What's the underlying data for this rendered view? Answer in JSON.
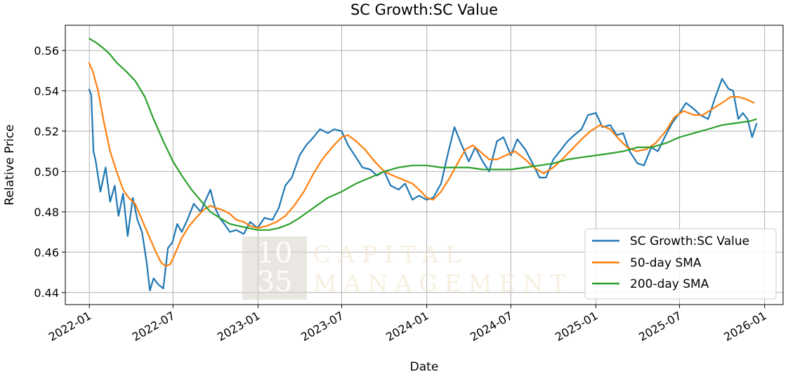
{
  "chart_data": {
    "type": "line",
    "title": "SC Growth:SC Value",
    "xlabel": "Date",
    "ylabel": "Relative Price",
    "xlim": [
      "2021-11-10",
      "2026-02-10"
    ],
    "ylim": [
      0.434,
      0.5725
    ],
    "x_ticks": [
      "2022-01",
      "2022-07",
      "2023-01",
      "2023-07",
      "2024-01",
      "2024-07",
      "2025-01",
      "2025-07",
      "2026-01"
    ],
    "y_ticks": [
      0.44,
      0.46,
      0.48,
      0.5,
      0.52,
      0.54,
      0.56
    ],
    "y_tick_labels": [
      "0.44",
      "0.46",
      "0.48",
      "0.50",
      "0.52",
      "0.54",
      "0.56"
    ],
    "grid": true,
    "legend_position": "lower-right",
    "series": [
      {
        "name": "SC Growth:SC Value",
        "color": "#1f77b4",
        "x": [
          "2021-12-31",
          "2022-01-05",
          "2022-01-10",
          "2022-01-15",
          "2022-01-25",
          "2022-02-05",
          "2022-02-15",
          "2022-02-25",
          "2022-03-05",
          "2022-03-15",
          "2022-03-25",
          "2022-04-05",
          "2022-04-15",
          "2022-04-25",
          "2022-05-05",
          "2022-05-12",
          "2022-05-20",
          "2022-05-30",
          "2022-06-10",
          "2022-06-20",
          "2022-06-30",
          "2022-07-10",
          "2022-07-20",
          "2022-08-01",
          "2022-08-15",
          "2022-08-30",
          "2022-09-10",
          "2022-09-20",
          "2022-09-30",
          "2022-10-10",
          "2022-10-20",
          "2022-11-01",
          "2022-11-15",
          "2022-12-01",
          "2022-12-15",
          "2022-12-31",
          "2023-01-15",
          "2023-02-01",
          "2023-02-15",
          "2023-03-01",
          "2023-03-15",
          "2023-04-01",
          "2023-04-15",
          "2023-05-01",
          "2023-05-15",
          "2023-06-01",
          "2023-06-15",
          "2023-07-01",
          "2023-07-15",
          "2023-08-01",
          "2023-08-15",
          "2023-09-01",
          "2023-09-15",
          "2023-10-01",
          "2023-10-15",
          "2023-11-01",
          "2023-11-15",
          "2023-12-01",
          "2023-12-15",
          "2024-01-01",
          "2024-01-15",
          "2024-02-01",
          "2024-02-15",
          "2024-03-01",
          "2024-03-15",
          "2024-04-01",
          "2024-04-15",
          "2024-05-01",
          "2024-05-15",
          "2024-06-01",
          "2024-06-15",
          "2024-07-01",
          "2024-07-15",
          "2024-08-01",
          "2024-08-15",
          "2024-09-01",
          "2024-09-15",
          "2024-10-01",
          "2024-10-15",
          "2024-11-01",
          "2024-11-15",
          "2024-12-01",
          "2024-12-15",
          "2025-01-01",
          "2025-01-15",
          "2025-02-01",
          "2025-02-15",
          "2025-03-01",
          "2025-03-15",
          "2025-04-01",
          "2025-04-15",
          "2025-05-01",
          "2025-05-15",
          "2025-06-01",
          "2025-06-15",
          "2025-07-01",
          "2025-07-15",
          "2025-08-01",
          "2025-08-15",
          "2025-09-01",
          "2025-09-15",
          "2025-10-01",
          "2025-10-15",
          "2025-10-25",
          "2025-11-05",
          "2025-11-15",
          "2025-11-25",
          "2025-12-05",
          "2025-12-15"
        ],
        "values": [
          0.541,
          0.538,
          0.51,
          0.505,
          0.49,
          0.502,
          0.485,
          0.493,
          0.478,
          0.489,
          0.468,
          0.487,
          0.476,
          0.47,
          0.455,
          0.441,
          0.447,
          0.444,
          0.442,
          0.462,
          0.465,
          0.474,
          0.47,
          0.476,
          0.484,
          0.48,
          0.486,
          0.491,
          0.482,
          0.477,
          0.474,
          0.47,
          0.471,
          0.469,
          0.475,
          0.472,
          0.477,
          0.476,
          0.482,
          0.493,
          0.497,
          0.508,
          0.513,
          0.517,
          0.521,
          0.519,
          0.521,
          0.52,
          0.513,
          0.507,
          0.502,
          0.501,
          0.498,
          0.5,
          0.493,
          0.491,
          0.494,
          0.486,
          0.488,
          0.486,
          0.487,
          0.494,
          0.508,
          0.522,
          0.514,
          0.505,
          0.512,
          0.505,
          0.5,
          0.515,
          0.517,
          0.508,
          0.516,
          0.511,
          0.505,
          0.497,
          0.497,
          0.506,
          0.51,
          0.515,
          0.518,
          0.521,
          0.528,
          0.529,
          0.522,
          0.523,
          0.518,
          0.519,
          0.51,
          0.504,
          0.503,
          0.512,
          0.51,
          0.518,
          0.524,
          0.529,
          0.534,
          0.531,
          0.528,
          0.526,
          0.536,
          0.546,
          0.541,
          0.54,
          0.526,
          0.529,
          0.526,
          0.517,
          0.524
        ]
      },
      {
        "name": "50-day SMA",
        "color": "#ff7f0e",
        "x": [
          "2021-12-31",
          "2022-01-08",
          "2022-01-20",
          "2022-02-01",
          "2022-02-15",
          "2022-03-01",
          "2022-03-15",
          "2022-03-27",
          "2022-04-10",
          "2022-04-25",
          "2022-05-10",
          "2022-05-25",
          "2022-06-05",
          "2022-06-15",
          "2022-06-25",
          "2022-07-05",
          "2022-07-20",
          "2022-08-05",
          "2022-08-20",
          "2022-09-05",
          "2022-09-20",
          "2022-10-01",
          "2022-10-15",
          "2022-11-01",
          "2022-11-15",
          "2022-12-01",
          "2022-12-15",
          "2023-01-01",
          "2023-01-20",
          "2023-02-10",
          "2023-03-01",
          "2023-03-20",
          "2023-04-10",
          "2023-05-01",
          "2023-05-20",
          "2023-06-10",
          "2023-07-01",
          "2023-07-15",
          "2023-08-01",
          "2023-08-20",
          "2023-09-10",
          "2023-10-01",
          "2023-10-20",
          "2023-11-10",
          "2023-12-01",
          "2023-12-20",
          "2024-01-01",
          "2024-01-15",
          "2024-02-01",
          "2024-02-20",
          "2024-03-10",
          "2024-03-25",
          "2024-04-10",
          "2024-04-25",
          "2024-05-15",
          "2024-06-01",
          "2024-06-20",
          "2024-07-10",
          "2024-08-01",
          "2024-08-20",
          "2024-09-10",
          "2024-10-01",
          "2024-10-20",
          "2024-11-10",
          "2024-12-01",
          "2024-12-20",
          "2025-01-10",
          "2025-02-01",
          "2025-02-20",
          "2025-03-10",
          "2025-03-30",
          "2025-04-20",
          "2025-05-10",
          "2025-06-01",
          "2025-06-20",
          "2025-07-10",
          "2025-08-01",
          "2025-08-20",
          "2025-09-10",
          "2025-10-01",
          "2025-10-20",
          "2025-11-05",
          "2025-11-20",
          "2025-12-10"
        ],
        "values": [
          0.554,
          0.55,
          0.54,
          0.525,
          0.51,
          0.5,
          0.491,
          0.487,
          0.484,
          0.476,
          0.468,
          0.46,
          0.455,
          0.453,
          0.454,
          0.459,
          0.467,
          0.473,
          0.477,
          0.481,
          0.483,
          0.482,
          0.481,
          0.479,
          0.476,
          0.475,
          0.473,
          0.472,
          0.473,
          0.475,
          0.478,
          0.483,
          0.49,
          0.499,
          0.506,
          0.512,
          0.517,
          0.518,
          0.515,
          0.511,
          0.505,
          0.5,
          0.498,
          0.496,
          0.494,
          0.49,
          0.487,
          0.486,
          0.49,
          0.497,
          0.505,
          0.511,
          0.513,
          0.51,
          0.506,
          0.506,
          0.508,
          0.51,
          0.506,
          0.502,
          0.499,
          0.502,
          0.506,
          0.511,
          0.516,
          0.52,
          0.523,
          0.521,
          0.516,
          0.512,
          0.51,
          0.511,
          0.514,
          0.52,
          0.527,
          0.53,
          0.528,
          0.528,
          0.531,
          0.534,
          0.537,
          0.537,
          0.536,
          0.534
        ]
      },
      {
        "name": "200-day SMA",
        "color": "#2ca02c",
        "x": [
          "2021-12-31",
          "2022-01-15",
          "2022-02-01",
          "2022-02-15",
          "2022-03-01",
          "2022-03-20",
          "2022-04-10",
          "2022-05-01",
          "2022-05-20",
          "2022-06-10",
          "2022-07-01",
          "2022-07-20",
          "2022-08-10",
          "2022-09-01",
          "2022-09-20",
          "2022-10-10",
          "2022-11-01",
          "2022-11-20",
          "2022-12-10",
          "2023-01-01",
          "2023-01-25",
          "2023-02-15",
          "2023-03-10",
          "2023-04-01",
          "2023-05-01",
          "2023-06-01",
          "2023-07-01",
          "2023-08-01",
          "2023-09-01",
          "2023-10-01",
          "2023-11-01",
          "2023-12-01",
          "2024-01-01",
          "2024-02-01",
          "2024-03-01",
          "2024-04-01",
          "2024-05-01",
          "2024-06-01",
          "2024-07-01",
          "2024-08-01",
          "2024-09-01",
          "2024-10-01",
          "2024-11-01",
          "2024-12-01",
          "2025-01-01",
          "2025-02-01",
          "2025-03-01",
          "2025-04-01",
          "2025-05-01",
          "2025-06-01",
          "2025-07-01",
          "2025-08-01",
          "2025-09-01",
          "2025-10-01",
          "2025-11-01",
          "2025-12-01",
          "2025-12-15"
        ],
        "values": [
          0.566,
          0.564,
          0.561,
          0.558,
          0.554,
          0.55,
          0.545,
          0.537,
          0.526,
          0.515,
          0.505,
          0.498,
          0.491,
          0.485,
          0.48,
          0.477,
          0.474,
          0.473,
          0.472,
          0.471,
          0.471,
          0.472,
          0.474,
          0.477,
          0.482,
          0.487,
          0.49,
          0.494,
          0.497,
          0.5,
          0.502,
          0.503,
          0.503,
          0.502,
          0.502,
          0.502,
          0.501,
          0.501,
          0.501,
          0.502,
          0.503,
          0.504,
          0.506,
          0.507,
          0.508,
          0.509,
          0.51,
          0.512,
          0.512,
          0.514,
          0.517,
          0.519,
          0.521,
          0.523,
          0.524,
          0.525,
          0.526
        ]
      }
    ],
    "watermark": {
      "number_top": "10",
      "number_bottom": "35",
      "line1": "CAPITAL",
      "line2": "MANAGEMENT"
    }
  }
}
